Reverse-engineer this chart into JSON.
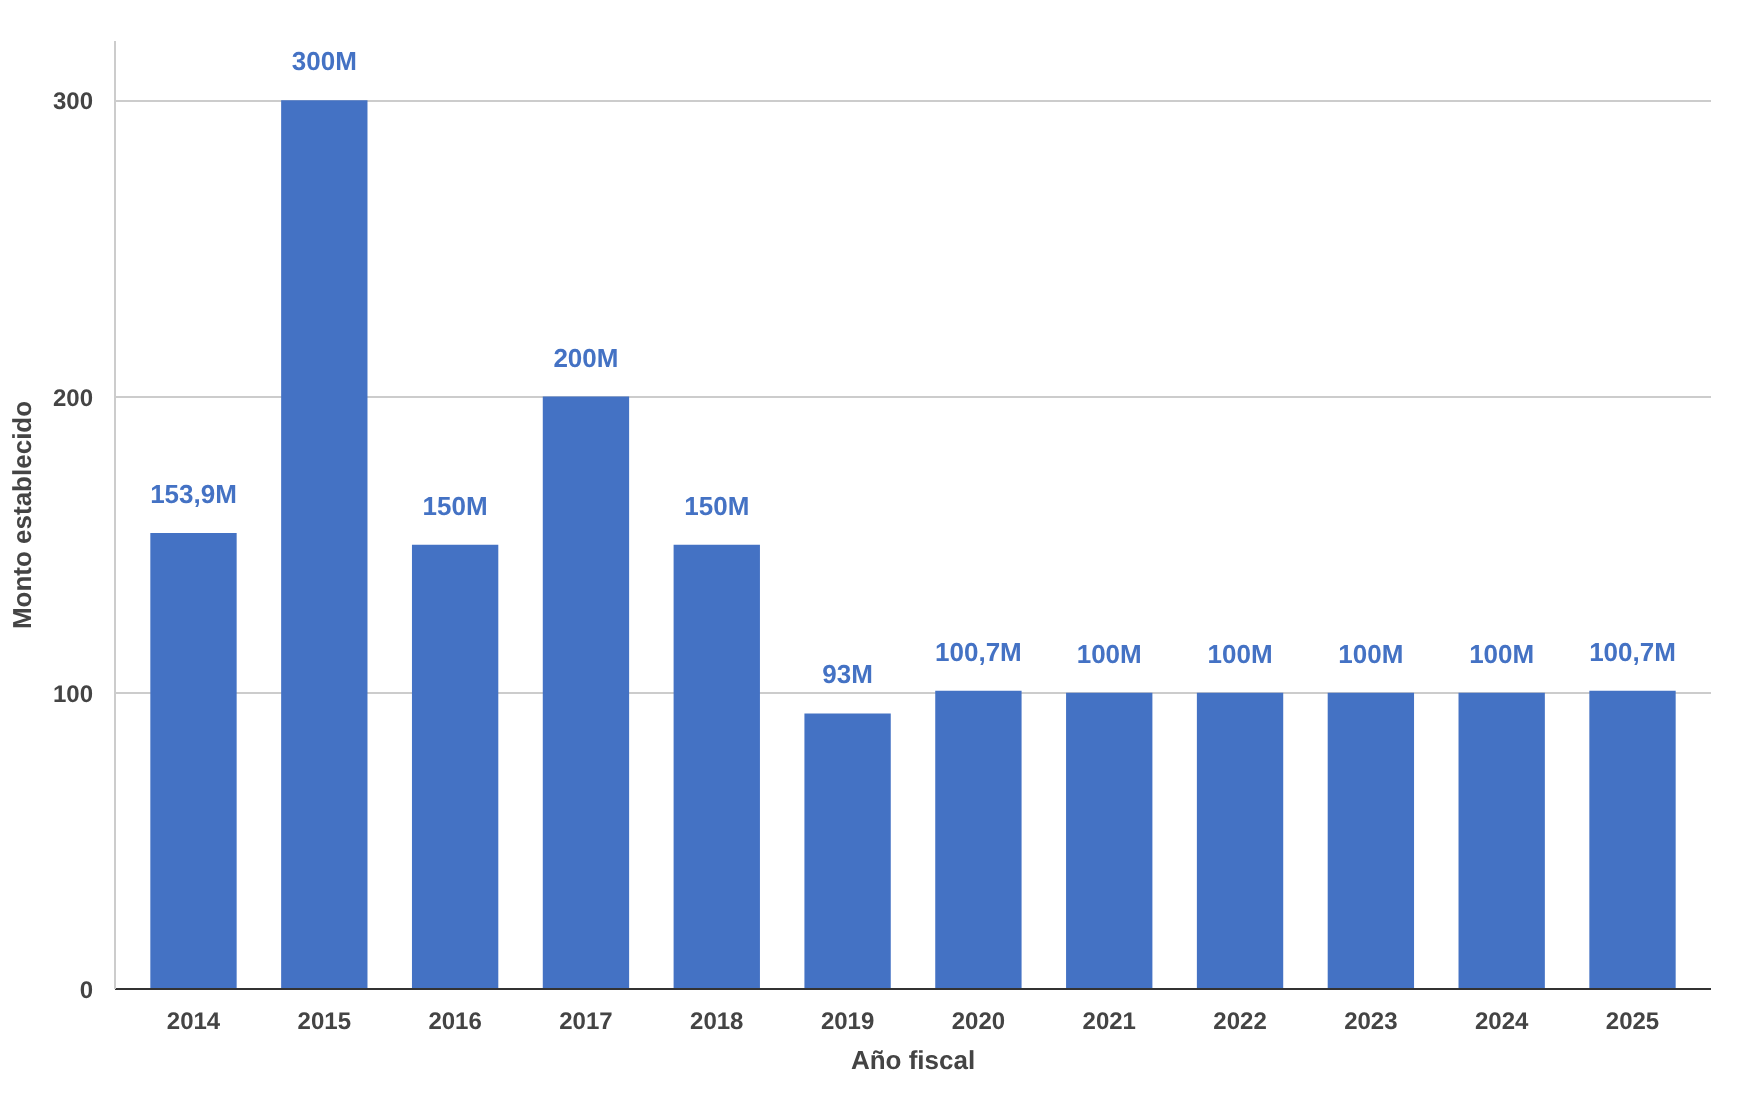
{
  "chart_data": {
    "type": "bar",
    "xlabel": "Año fiscal",
    "ylabel": "Monto establecido",
    "categories": [
      "2014",
      "2015",
      "2016",
      "2017",
      "2018",
      "2019",
      "2020",
      "2021",
      "2022",
      "2023",
      "2024",
      "2025"
    ],
    "values": [
      153.9,
      300,
      150,
      200,
      150,
      93,
      100.7,
      100,
      100,
      100,
      100,
      100.7
    ],
    "value_labels": [
      "153,9M",
      "300M",
      "150M",
      "200M",
      "150M",
      "93M",
      "100,7M",
      "100M",
      "100M",
      "100M",
      "100M",
      "100,7M"
    ],
    "color": "#4472c4",
    "ylim": [
      0,
      320
    ],
    "yticks": [
      0,
      100,
      200,
      300
    ],
    "grid": "y"
  }
}
